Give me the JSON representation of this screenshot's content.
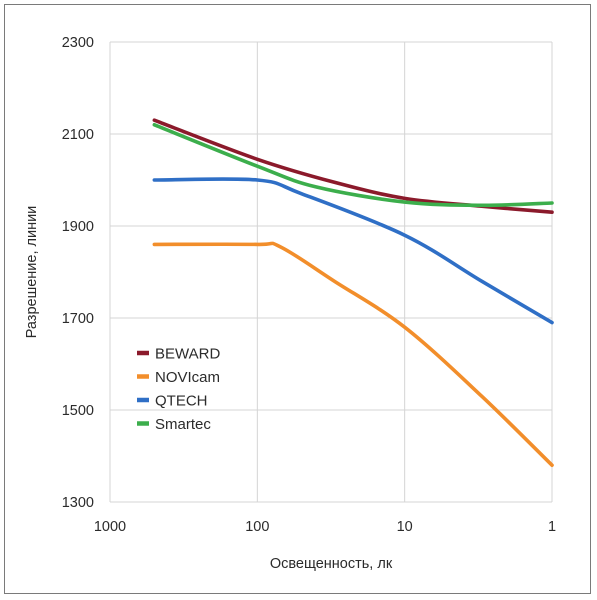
{
  "chart_data": {
    "type": "line",
    "xlabel": "Освещенность, лк",
    "ylabel": "Разрешение, линии",
    "x_scale": "log",
    "x_reversed": true,
    "xlim": [
      1000,
      1
    ],
    "ylim": [
      1300,
      2300
    ],
    "x_ticks": [
      1000,
      100,
      10,
      1
    ],
    "x_tick_labels": [
      "1000",
      "100",
      "10",
      "1"
    ],
    "y_ticks": [
      1300,
      1500,
      1700,
      1900,
      2100,
      2300
    ],
    "y_tick_labels": [
      "1300",
      "1500",
      "1700",
      "1900",
      "2100",
      "2300"
    ],
    "grid": true,
    "legend_position": "lower-left",
    "series": [
      {
        "name": "BEWARD",
        "color": "#8b1a2b",
        "points": [
          [
            500,
            2130
          ],
          [
            100,
            2045
          ],
          [
            30,
            1995
          ],
          [
            10,
            1960
          ],
          [
            3,
            1943
          ],
          [
            1,
            1930
          ]
        ]
      },
      {
        "name": "NOVIcam",
        "color": "#f28e2b",
        "points": [
          [
            500,
            1860
          ],
          [
            100,
            1860
          ],
          [
            70,
            1855
          ],
          [
            30,
            1780
          ],
          [
            10,
            1680
          ],
          [
            3,
            1530
          ],
          [
            1,
            1380
          ]
        ]
      },
      {
        "name": "QTECH",
        "color": "#2f6fc6",
        "points": [
          [
            500,
            2000
          ],
          [
            100,
            2000
          ],
          [
            50,
            1970
          ],
          [
            10,
            1880
          ],
          [
            3,
            1780
          ],
          [
            1,
            1690
          ]
        ]
      },
      {
        "name": "Smartec",
        "color": "#3cae4c",
        "points": [
          [
            500,
            2120
          ],
          [
            100,
            2030
          ],
          [
            40,
            1985
          ],
          [
            10,
            1952
          ],
          [
            3,
            1945
          ],
          [
            1,
            1950
          ]
        ]
      }
    ]
  }
}
